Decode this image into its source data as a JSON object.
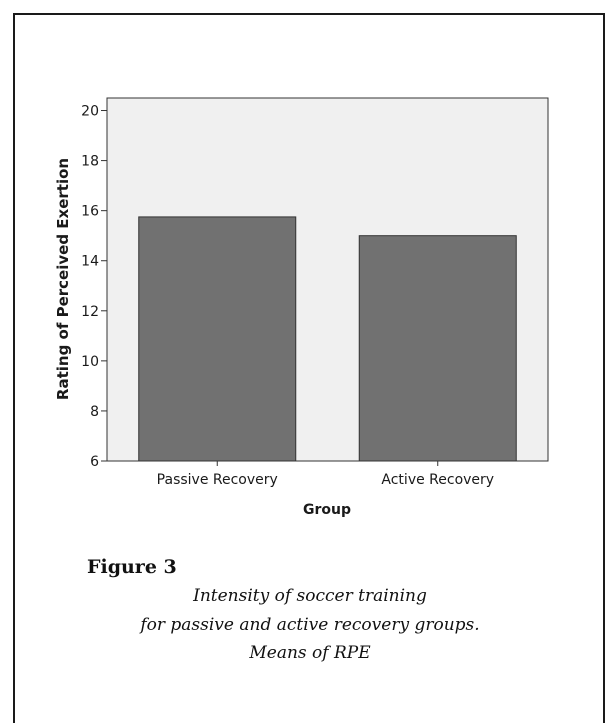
{
  "chart_data": {
    "type": "bar",
    "categories": [
      "Passive Recovery",
      "Active Recovery"
    ],
    "values": [
      15.75,
      15.0
    ],
    "xlabel": "Group",
    "ylabel": "Rating of Perceived Exertion",
    "ylim": [
      6,
      20.5
    ],
    "yticks": [
      6,
      8,
      10,
      12,
      14,
      16,
      18,
      20
    ],
    "colors": {
      "bar": "#717171",
      "plot_bg": "#f0f0f0"
    },
    "grid": false
  },
  "figure": {
    "label": "Figure 3",
    "caption_lines": [
      "Intensity of soccer training",
      "for passive and active recovery groups.",
      "Means of RPE"
    ]
  }
}
